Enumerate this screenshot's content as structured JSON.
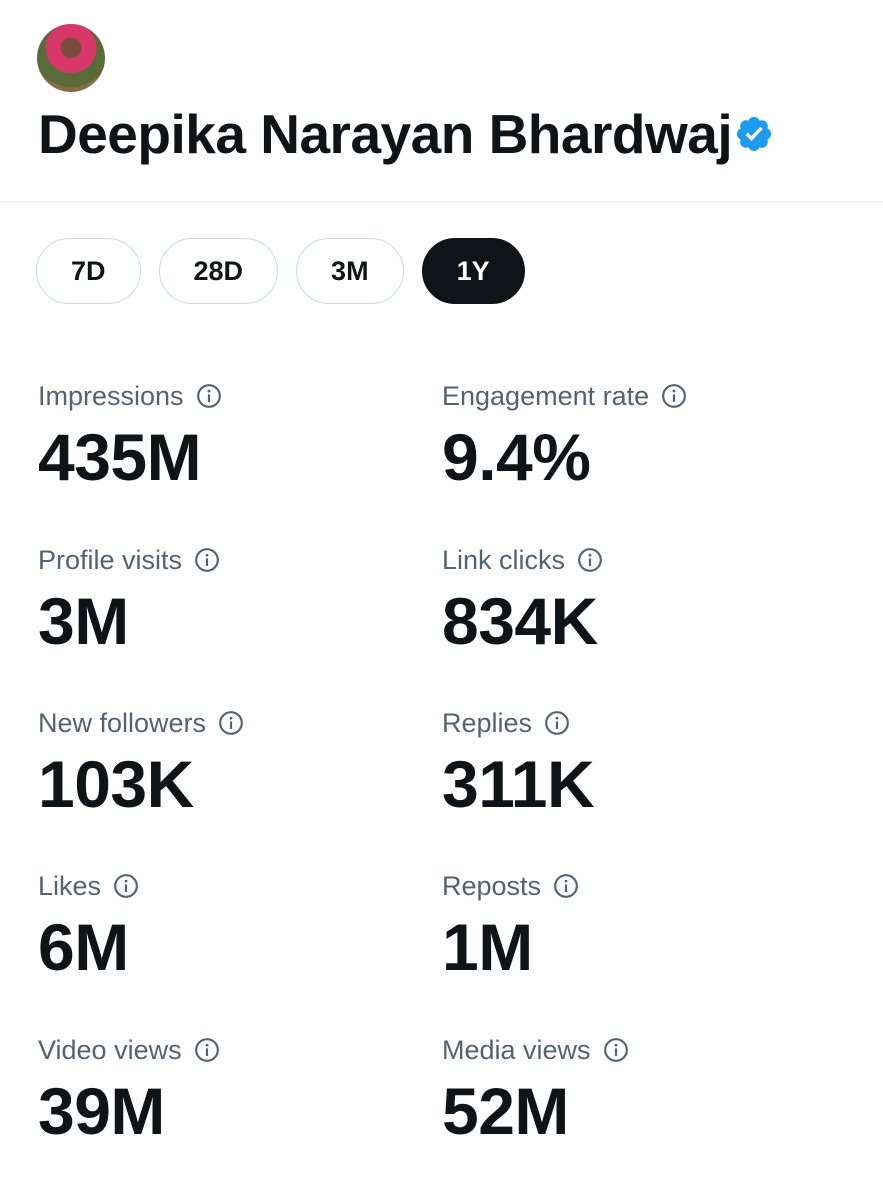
{
  "profile": {
    "name": "Deepika Narayan Bhardwaj",
    "verified": true
  },
  "tabs": [
    {
      "label": "7D"
    },
    {
      "label": "28D"
    },
    {
      "label": "3M"
    },
    {
      "label": "1Y",
      "active": true
    }
  ],
  "metrics": [
    {
      "label": "Impressions",
      "value": "435M"
    },
    {
      "label": "Engagement rate",
      "value": "9.4%"
    },
    {
      "label": "Profile visits",
      "value": "3M"
    },
    {
      "label": "Link clicks",
      "value": "834K"
    },
    {
      "label": "New followers",
      "value": "103K"
    },
    {
      "label": "Replies",
      "value": "311K"
    },
    {
      "label": "Likes",
      "value": "6M"
    },
    {
      "label": "Reposts",
      "value": "1M"
    },
    {
      "label": "Video views",
      "value": "39M"
    },
    {
      "label": "Media views",
      "value": "52M"
    }
  ]
}
